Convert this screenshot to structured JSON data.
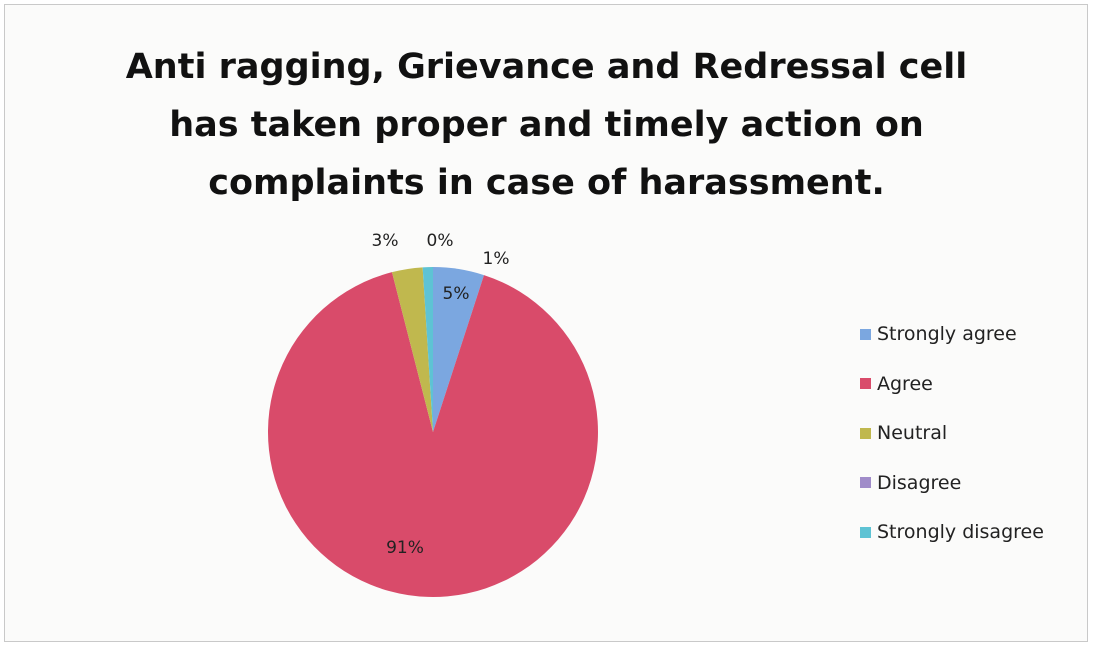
{
  "chart_data": {
    "type": "pie",
    "title_lines": [
      "Anti ragging, Grievance and Redressal cell",
      "has taken proper and timely action on",
      "complaints in case of harassment."
    ],
    "categories": [
      "Strongly agree",
      "Agree",
      "Neutral",
      "Disagree",
      "Strongly disagree"
    ],
    "values": [
      5,
      91,
      3,
      0,
      1
    ],
    "data_labels": [
      "5%",
      "91%",
      "3%",
      "0%",
      "1%"
    ],
    "colors": [
      "#7ba7e0",
      "#d94b6a",
      "#c0b84e",
      "#a08cc9",
      "#5ec3d4"
    ],
    "legend_position": "right"
  }
}
